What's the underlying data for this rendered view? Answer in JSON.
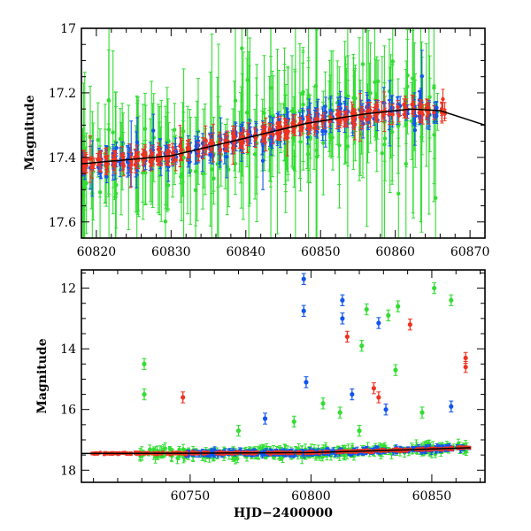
{
  "chart_data": [
    {
      "type": "scatter",
      "title": "",
      "xlabel": "",
      "ylabel": "Magnitude",
      "xlim": [
        60818,
        60872
      ],
      "ylim": [
        17.65,
        17.0
      ],
      "y_inverted": true,
      "xticks": [
        60820,
        60830,
        60840,
        60850,
        60860,
        60870
      ],
      "yticks": [
        17,
        17.2,
        17.4,
        17.6
      ],
      "model_curve": {
        "x": [
          60818,
          60830,
          60840,
          60848,
          60856,
          60862,
          60866,
          60872
        ],
        "y": [
          17.42,
          17.395,
          17.34,
          17.295,
          17.265,
          17.25,
          17.255,
          17.3
        ]
      },
      "series": [
        {
          "color": "#33dd33",
          "x_range": [
            60818,
            60866
          ],
          "scatter": 0.16,
          "err": 0.14,
          "outlier_rate": 0.22
        },
        {
          "color": "#1155ee",
          "x_range": [
            60818,
            60866
          ],
          "scatter": 0.05,
          "err": 0.035,
          "outlier_rate": 0.06
        },
        {
          "color": "#ee3322",
          "x_range": [
            60818,
            60867
          ],
          "scatter": 0.03,
          "err": 0.025,
          "outlier_rate": 0.04
        }
      ],
      "grid": false,
      "legend": "none"
    },
    {
      "type": "scatter",
      "title": "",
      "xlabel": "HJD−2400000",
      "ylabel": "Magnitude",
      "xlim": [
        60705,
        60872
      ],
      "ylim": [
        18.4,
        11.4
      ],
      "y_inverted": true,
      "xticks": [
        60750,
        60800,
        60850
      ],
      "yticks": [
        12,
        14,
        16,
        18
      ],
      "model_curve": {
        "x": [
          60705,
          60750,
          60800,
          60840,
          60866
        ],
        "y": [
          17.45,
          17.44,
          17.42,
          17.33,
          17.26
        ]
      },
      "series": [
        {
          "color": "#33dd33",
          "x_range": [
            60728,
            60866
          ],
          "scatter": 0.22,
          "err": 0.15
        },
        {
          "color": "#1155ee",
          "x_range": [
            60748,
            60866
          ],
          "scatter": 0.12,
          "err": 0.08
        },
        {
          "color": "#ee3322",
          "x_range": [
            60708,
            60867
          ],
          "scatter": 0.05,
          "err": 0.04
        }
      ],
      "outliers": [
        {
          "x": 60731,
          "y": 14.5,
          "c": "#33dd33"
        },
        {
          "x": 60731,
          "y": 15.5,
          "c": "#33dd33"
        },
        {
          "x": 60797,
          "y": 11.7,
          "c": "#1155ee"
        },
        {
          "x": 60797,
          "y": 12.75,
          "c": "#1155ee"
        },
        {
          "x": 60813,
          "y": 12.4,
          "c": "#1155ee"
        },
        {
          "x": 60813,
          "y": 13.0,
          "c": "#1155ee"
        },
        {
          "x": 60828,
          "y": 13.15,
          "c": "#1155ee"
        },
        {
          "x": 60798,
          "y": 15.1,
          "c": "#1155ee"
        },
        {
          "x": 60781,
          "y": 16.3,
          "c": "#1155ee"
        },
        {
          "x": 60815,
          "y": 13.6,
          "c": "#ee3322"
        },
        {
          "x": 60823,
          "y": 12.7,
          "c": "#33dd33"
        },
        {
          "x": 60832,
          "y": 12.9,
          "c": "#33dd33"
        },
        {
          "x": 60836,
          "y": 12.6,
          "c": "#33dd33"
        },
        {
          "x": 60821,
          "y": 13.9,
          "c": "#33dd33"
        },
        {
          "x": 60841,
          "y": 13.2,
          "c": "#ee3322"
        },
        {
          "x": 60851,
          "y": 12.0,
          "c": "#33dd33"
        },
        {
          "x": 60858,
          "y": 12.4,
          "c": "#33dd33"
        },
        {
          "x": 60864,
          "y": 14.3,
          "c": "#ee3322"
        },
        {
          "x": 60864,
          "y": 14.6,
          "c": "#ee3322"
        },
        {
          "x": 60826,
          "y": 15.3,
          "c": "#ee3322"
        },
        {
          "x": 60828,
          "y": 15.6,
          "c": "#ee3322"
        },
        {
          "x": 60747,
          "y": 15.6,
          "c": "#ee3322"
        },
        {
          "x": 60835,
          "y": 14.7,
          "c": "#33dd33"
        },
        {
          "x": 60805,
          "y": 15.8,
          "c": "#33dd33"
        },
        {
          "x": 60793,
          "y": 16.4,
          "c": "#33dd33"
        },
        {
          "x": 60817,
          "y": 15.5,
          "c": "#1155ee"
        },
        {
          "x": 60846,
          "y": 16.1,
          "c": "#33dd33"
        },
        {
          "x": 60812,
          "y": 16.1,
          "c": "#33dd33"
        },
        {
          "x": 60858,
          "y": 15.9,
          "c": "#1155ee"
        },
        {
          "x": 60831,
          "y": 16.0,
          "c": "#1155ee"
        },
        {
          "x": 60820,
          "y": 16.7,
          "c": "#33dd33"
        },
        {
          "x": 60770,
          "y": 16.7,
          "c": "#33dd33"
        }
      ],
      "grid": false,
      "legend": "none"
    }
  ]
}
